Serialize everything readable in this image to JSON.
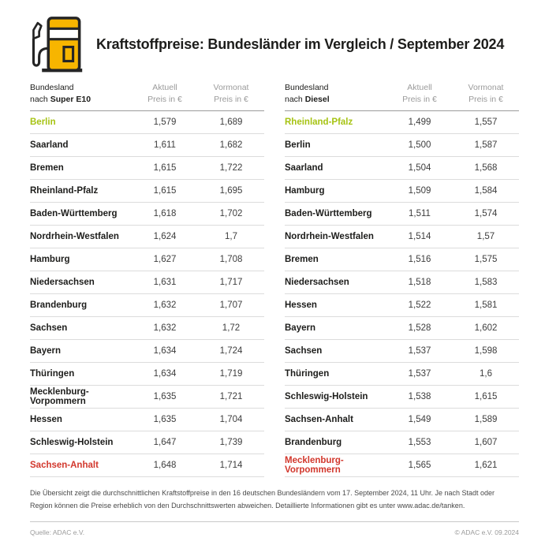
{
  "header": {
    "title": "Kraftstoffpreise: Bundesländer im Vergleich / September 2024",
    "icon": "fuel-pump-icon"
  },
  "colors": {
    "accent_amber": "#f7b500",
    "outline_dark": "#252525",
    "best_green": "#a6c313",
    "worst_red": "#d2372c",
    "header_gray": "#9b9b9b",
    "row_line": "#dcdcdc"
  },
  "columns": {
    "aktuell_line1": "Aktuell",
    "aktuell_line2": "Preis in €",
    "vormonat_line1": "Vormonat",
    "vormonat_line2": "Preis in €"
  },
  "chart_data": [
    {
      "type": "table",
      "label_line1": "Bundesland",
      "label_prefix": "nach ",
      "fuel": "Super E10",
      "columns": [
        "Bundesland nach Super E10",
        "Aktuell Preis in €",
        "Vormonat Preis in €"
      ],
      "rows": [
        {
          "name": "Berlin",
          "aktuell": "1,579",
          "vormonat": "1,689",
          "highlight": "green"
        },
        {
          "name": "Saarland",
          "aktuell": "1,611",
          "vormonat": "1,682"
        },
        {
          "name": "Bremen",
          "aktuell": "1,615",
          "vormonat": "1,722"
        },
        {
          "name": "Rheinland-Pfalz",
          "aktuell": "1,615",
          "vormonat": "1,695"
        },
        {
          "name": "Baden-Württemberg",
          "aktuell": "1,618",
          "vormonat": "1,702"
        },
        {
          "name": "Nordrhein-Westfalen",
          "aktuell": "1,624",
          "vormonat": "1,7"
        },
        {
          "name": "Hamburg",
          "aktuell": "1,627",
          "vormonat": "1,708"
        },
        {
          "name": "Niedersachsen",
          "aktuell": "1,631",
          "vormonat": "1,717"
        },
        {
          "name": "Brandenburg",
          "aktuell": "1,632",
          "vormonat": "1,707"
        },
        {
          "name": "Sachsen",
          "aktuell": "1,632",
          "vormonat": "1,72"
        },
        {
          "name": "Bayern",
          "aktuell": "1,634",
          "vormonat": "1,724"
        },
        {
          "name": "Thüringen",
          "aktuell": "1,634",
          "vormonat": "1,719"
        },
        {
          "name": "Mecklenburg-Vorpommern",
          "aktuell": "1,635",
          "vormonat": "1,721"
        },
        {
          "name": "Hessen",
          "aktuell": "1,635",
          "vormonat": "1,704"
        },
        {
          "name": "Schleswig-Holstein",
          "aktuell": "1,647",
          "vormonat": "1,739"
        },
        {
          "name": "Sachsen-Anhalt",
          "aktuell": "1,648",
          "vormonat": "1,714",
          "highlight": "red"
        }
      ]
    },
    {
      "type": "table",
      "label_line1": "Bundesland",
      "label_prefix": "nach ",
      "fuel": "Diesel",
      "columns": [
        "Bundesland nach Diesel",
        "Aktuell Preis in €",
        "Vormonat Preis in €"
      ],
      "rows": [
        {
          "name": "Rheinland-Pfalz",
          "aktuell": "1,499",
          "vormonat": "1,557",
          "highlight": "green"
        },
        {
          "name": "Berlin",
          "aktuell": "1,500",
          "vormonat": "1,587"
        },
        {
          "name": "Saarland",
          "aktuell": "1,504",
          "vormonat": "1,568"
        },
        {
          "name": "Hamburg",
          "aktuell": "1,509",
          "vormonat": "1,584"
        },
        {
          "name": "Baden-Württemberg",
          "aktuell": "1,511",
          "vormonat": "1,574"
        },
        {
          "name": "Nordrhein-Westfalen",
          "aktuell": "1,514",
          "vormonat": "1,57"
        },
        {
          "name": "Bremen",
          "aktuell": "1,516",
          "vormonat": "1,575"
        },
        {
          "name": "Niedersachsen",
          "aktuell": "1,518",
          "vormonat": "1,583"
        },
        {
          "name": "Hessen",
          "aktuell": "1,522",
          "vormonat": "1,581"
        },
        {
          "name": "Bayern",
          "aktuell": "1,528",
          "vormonat": "1,602"
        },
        {
          "name": "Sachsen",
          "aktuell": "1,537",
          "vormonat": "1,598"
        },
        {
          "name": "Thüringen",
          "aktuell": "1,537",
          "vormonat": "1,6"
        },
        {
          "name": "Schleswig-Holstein",
          "aktuell": "1,538",
          "vormonat": "1,615"
        },
        {
          "name": "Sachsen-Anhalt",
          "aktuell": "1,549",
          "vormonat": "1,589"
        },
        {
          "name": "Brandenburg",
          "aktuell": "1,553",
          "vormonat": "1,607"
        },
        {
          "name": "Mecklenburg-Vorpommern",
          "aktuell": "1,565",
          "vormonat": "1,621",
          "highlight": "red"
        }
      ]
    }
  ],
  "footnote": "Die Übersicht zeigt die durchschnittlichen Kraftstoffpreise in den 16 deutschen Bundesländern vom 17. September 2024, 11 Uhr. Je nach Stadt oder Region können die Preise erheblich von den Durchschnittswerten abweichen. Detaillierte Informationen gibt es unter www.adac.de/tanken.",
  "footer": {
    "source": "Quelle: ADAC e.V.",
    "copyright": "© ADAC e.V. 09.2024"
  }
}
